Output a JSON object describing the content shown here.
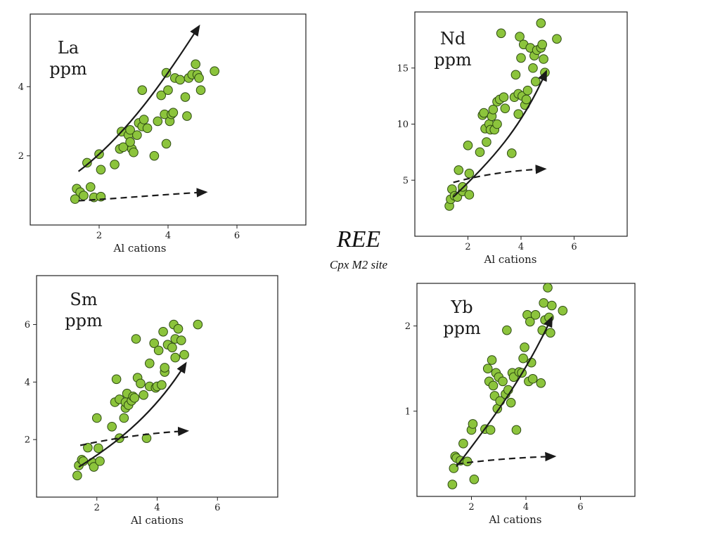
{
  "title": "REE",
  "subtitle": "Cpx M2 site",
  "colors": {
    "marker_fill": "#8cc43c",
    "marker_stroke": "#2d4a12",
    "arrow": "#1a1a1a"
  },
  "chart_data": [
    {
      "type": "scatter",
      "id": "la",
      "element": "La",
      "unit": "ppm",
      "xlabel": "Al cations",
      "xlim": [
        0,
        8
      ],
      "ylim": [
        0,
        6.1
      ],
      "xticks": [
        2,
        4,
        6
      ],
      "yticks": [
        2,
        4
      ],
      "points": [
        [
          1.35,
          1.05
        ],
        [
          1.45,
          0.95
        ],
        [
          1.3,
          0.75
        ],
        [
          1.55,
          0.85
        ],
        [
          1.75,
          1.1
        ],
        [
          1.85,
          0.8
        ],
        [
          2.05,
          0.82
        ],
        [
          1.65,
          1.8
        ],
        [
          2.0,
          2.05
        ],
        [
          2.05,
          1.6
        ],
        [
          2.45,
          1.75
        ],
        [
          2.6,
          2.2
        ],
        [
          2.65,
          2.7
        ],
        [
          2.7,
          2.25
        ],
        [
          2.85,
          2.6
        ],
        [
          2.9,
          2.75
        ],
        [
          2.95,
          2.2
        ],
        [
          2.9,
          2.4
        ],
        [
          3.0,
          2.1
        ],
        [
          3.1,
          2.6
        ],
        [
          3.15,
          2.95
        ],
        [
          3.25,
          2.85
        ],
        [
          3.3,
          3.05
        ],
        [
          3.4,
          2.8
        ],
        [
          3.25,
          3.9
        ],
        [
          3.6,
          2.0
        ],
        [
          3.7,
          3.0
        ],
        [
          3.8,
          3.75
        ],
        [
          3.9,
          3.2
        ],
        [
          3.95,
          2.35
        ],
        [
          4.0,
          3.9
        ],
        [
          4.05,
          3.0
        ],
        [
          4.1,
          3.2
        ],
        [
          4.15,
          3.25
        ],
        [
          3.95,
          4.4
        ],
        [
          4.2,
          4.25
        ],
        [
          4.35,
          4.2
        ],
        [
          4.5,
          3.7
        ],
        [
          4.55,
          3.15
        ],
        [
          4.6,
          4.25
        ],
        [
          4.7,
          4.35
        ],
        [
          4.8,
          4.65
        ],
        [
          4.85,
          4.35
        ],
        [
          4.9,
          4.25
        ],
        [
          4.95,
          3.9
        ],
        [
          5.35,
          4.45
        ]
      ],
      "curve": [
        [
          1.4,
          1.55
        ],
        [
          2.8,
          2.6
        ],
        [
          3.9,
          4.2
        ],
        [
          4.9,
          5.75
        ]
      ],
      "dashed": [
        [
          1.4,
          0.7
        ],
        [
          3.0,
          0.8
        ],
        [
          4.1,
          0.9
        ],
        [
          5.1,
          0.95
        ]
      ]
    },
    {
      "type": "scatter",
      "id": "nd",
      "element": "Nd",
      "unit": "ppm",
      "xlabel": "Al cations",
      "xlim": [
        0,
        8
      ],
      "ylim": [
        0,
        20
      ],
      "xticks": [
        2,
        4,
        6
      ],
      "yticks": [
        5,
        10,
        15
      ],
      "points": [
        [
          1.3,
          2.7
        ],
        [
          1.35,
          3.3
        ],
        [
          1.4,
          4.2
        ],
        [
          1.5,
          3.6
        ],
        [
          1.6,
          3.5
        ],
        [
          1.65,
          5.9
        ],
        [
          1.8,
          4.0
        ],
        [
          1.8,
          4.4
        ],
        [
          2.0,
          8.1
        ],
        [
          2.05,
          5.6
        ],
        [
          2.05,
          3.7
        ],
        [
          2.45,
          7.5
        ],
        [
          2.55,
          10.8
        ],
        [
          2.6,
          11.0
        ],
        [
          2.65,
          9.6
        ],
        [
          2.7,
          8.4
        ],
        [
          2.8,
          10.0
        ],
        [
          2.85,
          9.5
        ],
        [
          2.9,
          10.7
        ],
        [
          2.95,
          11.3
        ],
        [
          3.0,
          9.5
        ],
        [
          3.1,
          10.0
        ],
        [
          3.1,
          12.0
        ],
        [
          3.2,
          12.2
        ],
        [
          3.25,
          18.1
        ],
        [
          3.35,
          12.4
        ],
        [
          3.4,
          11.4
        ],
        [
          3.65,
          7.4
        ],
        [
          3.75,
          12.4
        ],
        [
          3.8,
          14.4
        ],
        [
          3.9,
          12.7
        ],
        [
          3.9,
          10.9
        ],
        [
          3.95,
          17.8
        ],
        [
          4.0,
          15.9
        ],
        [
          4.05,
          12.5
        ],
        [
          4.1,
          17.1
        ],
        [
          4.15,
          11.7
        ],
        [
          4.2,
          12.2
        ],
        [
          4.25,
          13.0
        ],
        [
          4.35,
          16.8
        ],
        [
          4.45,
          15.0
        ],
        [
          4.5,
          16.1
        ],
        [
          4.55,
          13.8
        ],
        [
          4.6,
          16.6
        ],
        [
          4.75,
          19.0
        ],
        [
          4.75,
          16.8
        ],
        [
          4.8,
          17.1
        ],
        [
          4.85,
          15.8
        ],
        [
          4.9,
          14.6
        ],
        [
          5.35,
          17.6
        ]
      ],
      "curve": [
        [
          1.45,
          3.5
        ],
        [
          2.9,
          6.8
        ],
        [
          4.0,
          9.6
        ],
        [
          4.95,
          14.7
        ]
      ],
      "dashed": [
        [
          1.45,
          4.8
        ],
        [
          2.7,
          5.6
        ],
        [
          3.9,
          5.9
        ],
        [
          4.9,
          6.0
        ]
      ]
    },
    {
      "type": "scatter",
      "id": "sm",
      "element": "Sm",
      "unit": "ppm",
      "xlabel": "Al cations",
      "xlim": [
        0,
        8
      ],
      "ylim": [
        0,
        7.7
      ],
      "xticks": [
        2,
        4,
        6
      ],
      "yticks": [
        2,
        4,
        6
      ],
      "points": [
        [
          1.35,
          0.75
        ],
        [
          1.4,
          1.1
        ],
        [
          1.5,
          1.3
        ],
        [
          1.55,
          1.25
        ],
        [
          1.7,
          1.72
        ],
        [
          1.85,
          1.2
        ],
        [
          1.9,
          1.05
        ],
        [
          2.0,
          2.75
        ],
        [
          2.05,
          1.7
        ],
        [
          2.1,
          1.25
        ],
        [
          2.5,
          2.45
        ],
        [
          2.6,
          3.3
        ],
        [
          2.65,
          4.1
        ],
        [
          2.75,
          2.05
        ],
        [
          2.75,
          3.4
        ],
        [
          2.9,
          2.75
        ],
        [
          2.95,
          3.1
        ],
        [
          2.95,
          3.3
        ],
        [
          3.0,
          3.6
        ],
        [
          3.05,
          3.2
        ],
        [
          3.15,
          3.35
        ],
        [
          3.2,
          3.5
        ],
        [
          3.25,
          3.45
        ],
        [
          3.3,
          5.5
        ],
        [
          3.35,
          4.15
        ],
        [
          3.45,
          3.95
        ],
        [
          3.55,
          3.55
        ],
        [
          3.65,
          2.05
        ],
        [
          3.75,
          3.85
        ],
        [
          3.75,
          4.65
        ],
        [
          3.9,
          5.35
        ],
        [
          3.95,
          3.8
        ],
        [
          4.0,
          3.85
        ],
        [
          4.05,
          5.1
        ],
        [
          4.15,
          3.9
        ],
        [
          4.2,
          5.75
        ],
        [
          4.25,
          4.35
        ],
        [
          4.25,
          4.5
        ],
        [
          4.35,
          5.3
        ],
        [
          4.5,
          5.2
        ],
        [
          4.55,
          6.0
        ],
        [
          4.6,
          5.5
        ],
        [
          4.6,
          4.85
        ],
        [
          4.7,
          5.85
        ],
        [
          4.8,
          5.45
        ],
        [
          4.9,
          4.95
        ],
        [
          5.35,
          6.0
        ]
      ],
      "curve": [
        [
          1.4,
          1.05
        ],
        [
          2.8,
          1.95
        ],
        [
          4.0,
          3.05
        ],
        [
          4.95,
          4.65
        ]
      ],
      "dashed": [
        [
          1.45,
          1.8
        ],
        [
          2.8,
          2.1
        ],
        [
          4.0,
          2.25
        ],
        [
          5.0,
          2.3
        ]
      ]
    },
    {
      "type": "scatter",
      "id": "yb",
      "element": "Yb",
      "unit": "ppm",
      "xlabel": "Al cations",
      "xlim": [
        0,
        8
      ],
      "ylim": [
        0,
        2.5
      ],
      "xticks": [
        2,
        4,
        6
      ],
      "yticks": [
        1,
        2
      ],
      "points": [
        [
          1.3,
          0.14
        ],
        [
          1.35,
          0.33
        ],
        [
          1.4,
          0.47
        ],
        [
          1.45,
          0.45
        ],
        [
          1.6,
          0.42
        ],
        [
          1.7,
          0.62
        ],
        [
          1.85,
          0.41
        ],
        [
          2.0,
          0.78
        ],
        [
          2.05,
          0.85
        ],
        [
          2.1,
          0.2
        ],
        [
          2.5,
          0.79
        ],
        [
          2.6,
          1.5
        ],
        [
          2.65,
          1.35
        ],
        [
          2.7,
          0.78
        ],
        [
          2.75,
          1.6
        ],
        [
          2.8,
          1.3
        ],
        [
          2.85,
          1.18
        ],
        [
          2.9,
          1.45
        ],
        [
          2.95,
          1.03
        ],
        [
          3.0,
          1.4
        ],
        [
          3.05,
          1.12
        ],
        [
          3.15,
          1.35
        ],
        [
          3.25,
          1.2
        ],
        [
          3.3,
          1.95
        ],
        [
          3.35,
          1.25
        ],
        [
          3.45,
          1.1
        ],
        [
          3.5,
          1.45
        ],
        [
          3.55,
          1.4
        ],
        [
          3.65,
          0.78
        ],
        [
          3.75,
          1.46
        ],
        [
          3.85,
          1.45
        ],
        [
          3.9,
          1.62
        ],
        [
          3.95,
          1.75
        ],
        [
          4.05,
          2.13
        ],
        [
          4.1,
          1.35
        ],
        [
          4.15,
          2.05
        ],
        [
          4.2,
          1.57
        ],
        [
          4.25,
          1.38
        ],
        [
          4.35,
          2.13
        ],
        [
          4.55,
          1.33
        ],
        [
          4.6,
          1.95
        ],
        [
          4.65,
          2.27
        ],
        [
          4.7,
          2.07
        ],
        [
          4.8,
          2.45
        ],
        [
          4.85,
          2.1
        ],
        [
          4.9,
          1.92
        ],
        [
          4.95,
          2.24
        ],
        [
          5.35,
          2.18
        ]
      ],
      "curve": [
        [
          1.45,
          0.35
        ],
        [
          2.9,
          0.95
        ],
        [
          4.0,
          1.45
        ],
        [
          4.95,
          2.1
        ]
      ],
      "dashed": [
        [
          1.45,
          0.38
        ],
        [
          2.9,
          0.44
        ],
        [
          4.1,
          0.46
        ],
        [
          5.05,
          0.47
        ]
      ]
    }
  ]
}
